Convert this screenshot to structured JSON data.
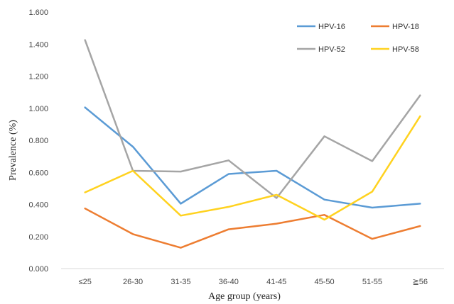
{
  "chart_data": {
    "type": "line",
    "xlabel": "Age group (years)",
    "ylabel": "Prevalence (%)",
    "ylim": [
      0,
      1.6
    ],
    "yticks": [
      "0.000",
      "0.200",
      "0.400",
      "0.600",
      "0.800",
      "1.000",
      "1.200",
      "1.400",
      "1.600"
    ],
    "categories": [
      "≤25",
      "26-30",
      "31-35",
      "36-40",
      "41-45",
      "45-50",
      "51-55",
      "≧56"
    ],
    "grid": false,
    "legend_position": "top-right",
    "series": [
      {
        "name": "HPV-16",
        "color": "#5B9BD5",
        "values": [
          1.005,
          0.76,
          0.405,
          0.59,
          0.61,
          0.43,
          0.38,
          0.405
        ]
      },
      {
        "name": "HPV-18",
        "color": "#ED7D31",
        "values": [
          0.375,
          0.215,
          0.13,
          0.245,
          0.28,
          0.335,
          0.185,
          0.265
        ]
      },
      {
        "name": "HPV-52",
        "color": "#A5A5A5",
        "values": [
          1.425,
          0.61,
          0.605,
          0.675,
          0.44,
          0.825,
          0.67,
          1.08
        ]
      },
      {
        "name": "HPV-58",
        "color": "#FFD21F",
        "values": [
          0.475,
          0.61,
          0.33,
          0.385,
          0.46,
          0.305,
          0.48,
          0.95
        ]
      }
    ]
  }
}
